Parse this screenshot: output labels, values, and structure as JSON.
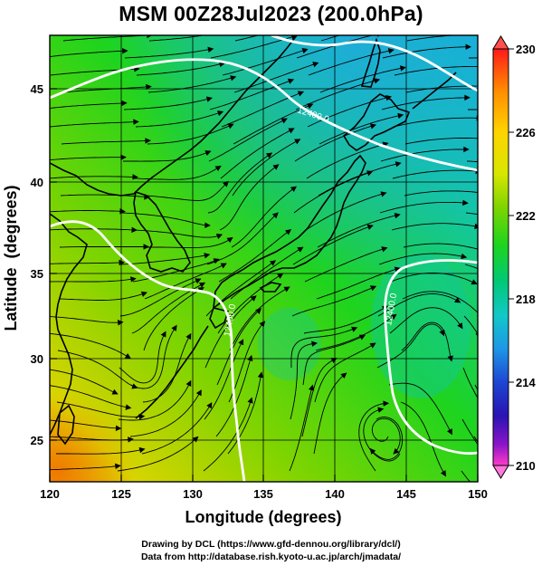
{
  "title": "MSM 00Z28Jul2023 (200.0hPa)",
  "x_axis": {
    "label": "Longitude (degrees)",
    "ticks": [
      "120",
      "125",
      "130",
      "135",
      "140",
      "145",
      "150"
    ]
  },
  "y_axis": {
    "label": "Latitude  (degrees)",
    "ticks": [
      "25",
      "30",
      "35",
      "40",
      "45"
    ]
  },
  "colorbar": {
    "ticks": [
      "230",
      "226",
      "222",
      "218",
      "214",
      "210"
    ],
    "colors": [
      "#ff1a1a",
      "#ff8c00",
      "#ffd400",
      "#d7e600",
      "#7fd400",
      "#1ed41e",
      "#00c878",
      "#12c8c8",
      "#1e96e6",
      "#1e46d2",
      "#2814b4",
      "#8c14c8",
      "#ff3cc8"
    ]
  },
  "contours": [
    {
      "label": "12400.0"
    },
    {
      "label": "12400.0"
    },
    {
      "label": "12400.0"
    }
  ],
  "credits": {
    "line1": "Drawing by DCL (https://www.gfd-dennou.org/library/dcl/)",
    "line2": "Data from http://database.rish.kyoto-u.ac.jp/arch/jmadata/"
  }
}
